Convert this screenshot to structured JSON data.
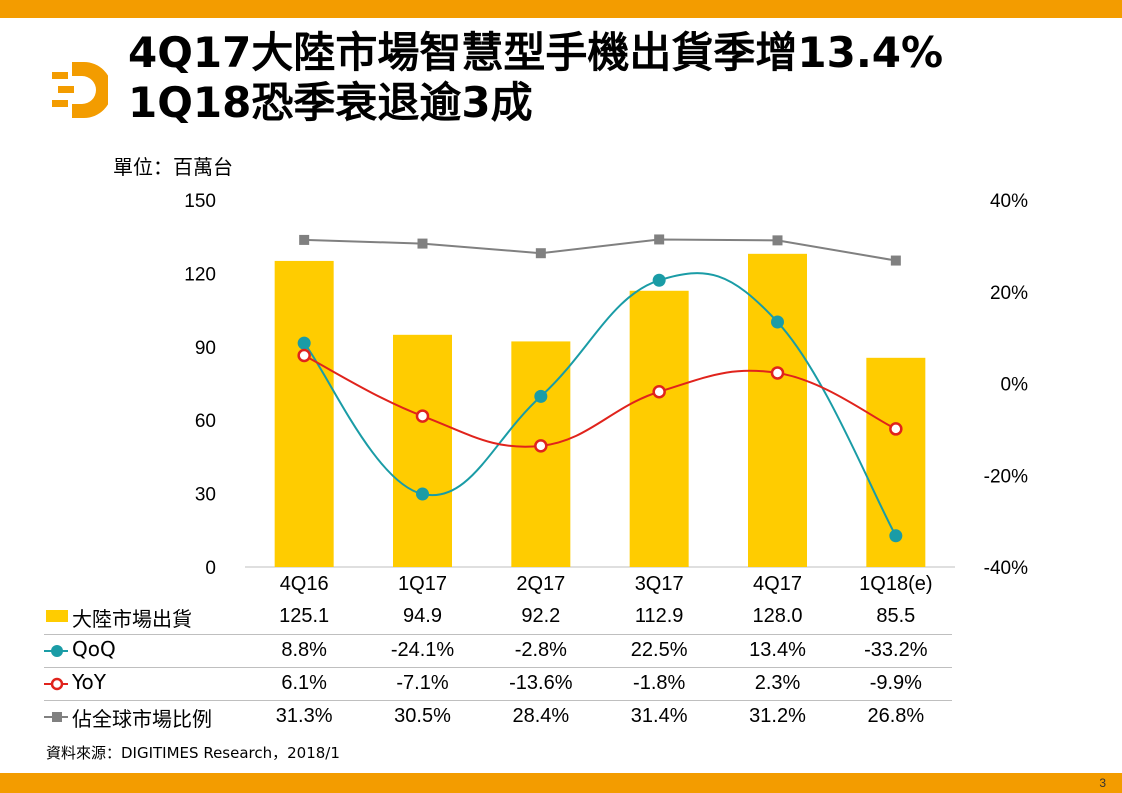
{
  "slide": {
    "title_line1": "4Q17大陸市場智慧型手機出貨季增13.4%",
    "title_line2": "1Q18恐季衰退逾3成",
    "unit": "單位：百萬台",
    "source": "資料來源：DIGITIMES Research，2018/1",
    "page_number": "3",
    "accent_color": "#f39c00"
  },
  "chart_data": {
    "type": "bar",
    "categories": [
      "4Q16",
      "1Q17",
      "2Q17",
      "3Q17",
      "4Q17",
      "1Q18(e)"
    ],
    "left_axis": {
      "min": 0,
      "max": 150,
      "ticks": [
        "0",
        "30",
        "60",
        "90",
        "120",
        "150"
      ]
    },
    "right_axis": {
      "min": -40,
      "max": 40,
      "ticks": [
        "-40%",
        "-20%",
        "0%",
        "20%",
        "40%"
      ]
    },
    "series": [
      {
        "name": "大陸市場出貨",
        "kind": "bar",
        "axis": "left",
        "color": "#ffcc00",
        "values": [
          125.1,
          94.9,
          92.2,
          112.9,
          128.0,
          85.5
        ],
        "labels": [
          "125.1",
          "94.9",
          "92.2",
          "112.9",
          "128.0",
          "85.5"
        ]
      },
      {
        "name": "QoQ",
        "kind": "line-smooth",
        "axis": "right",
        "color": "#1a9ca6",
        "values": [
          8.8,
          -24.1,
          -2.8,
          22.5,
          13.4,
          -33.2
        ],
        "labels": [
          "8.8%",
          "-24.1%",
          "-2.8%",
          "22.5%",
          "13.4%",
          "-33.2%"
        ]
      },
      {
        "name": "YoY",
        "kind": "line-smooth",
        "axis": "right",
        "color": "#e0231c",
        "values": [
          6.1,
          -7.1,
          -13.6,
          -1.8,
          2.3,
          -9.9
        ],
        "labels": [
          "6.1%",
          "-7.1%",
          "-13.6%",
          "-1.8%",
          "2.3%",
          "-9.9%"
        ]
      },
      {
        "name": "佔全球市場比例",
        "kind": "line",
        "axis": "right",
        "color": "#808080",
        "values": [
          31.3,
          30.5,
          28.4,
          31.4,
          31.2,
          26.8
        ],
        "labels": [
          "31.3%",
          "30.5%",
          "28.4%",
          "31.4%",
          "31.2%",
          "26.8%"
        ]
      }
    ],
    "grid": false,
    "legend": "data-table-below"
  }
}
